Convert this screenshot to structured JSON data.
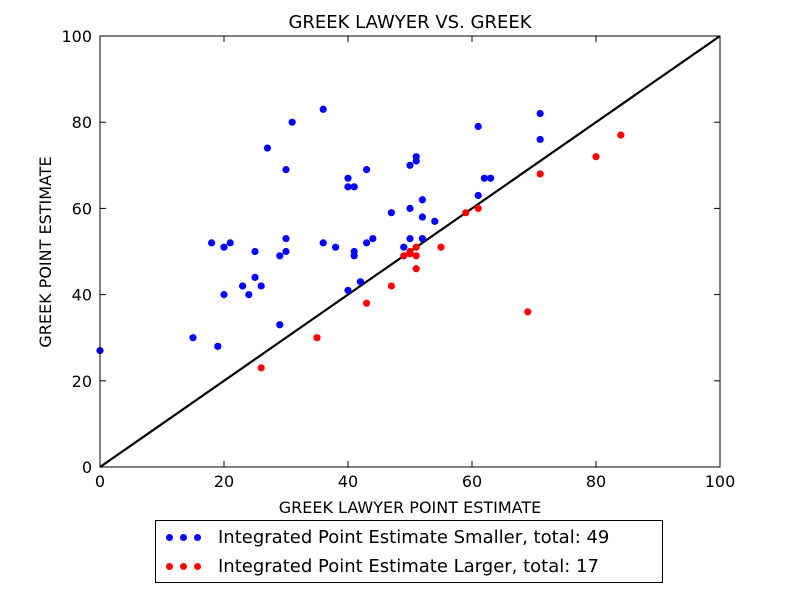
{
  "chart_data": {
    "type": "scatter",
    "title": "GREEK LAWYER VS. GREEK",
    "xlabel": "GREEK LAWYER POINT ESTIMATE",
    "ylabel": "GREEK POINT ESTIMATE",
    "xlim": [
      0,
      100
    ],
    "ylim": [
      0,
      100
    ],
    "xticks": [
      "0",
      "20",
      "40",
      "60",
      "80",
      "100"
    ],
    "yticks": [
      "0",
      "20",
      "40",
      "60",
      "80",
      "100"
    ],
    "grid": false,
    "legend_position": "below",
    "reference_line": {
      "type": "diagonal",
      "x": [
        0,
        100
      ],
      "y": [
        0,
        100
      ],
      "color": "#000000"
    },
    "series": [
      {
        "name": "Integrated Point Estimate Smaller, total: 49",
        "color": "#0000ff",
        "points": [
          [
            0,
            27
          ],
          [
            15,
            30
          ],
          [
            18,
            52
          ],
          [
            19,
            28
          ],
          [
            20,
            51
          ],
          [
            20,
            40
          ],
          [
            21,
            52
          ],
          [
            23,
            42
          ],
          [
            24,
            40
          ],
          [
            25,
            50
          ],
          [
            25,
            44
          ],
          [
            26,
            42
          ],
          [
            27,
            74
          ],
          [
            29,
            49
          ],
          [
            29,
            33
          ],
          [
            30,
            69
          ],
          [
            30,
            53
          ],
          [
            30,
            50
          ],
          [
            31,
            80
          ],
          [
            36,
            83
          ],
          [
            36,
            52
          ],
          [
            38,
            51
          ],
          [
            40,
            67
          ],
          [
            40,
            65
          ],
          [
            40,
            41
          ],
          [
            41,
            65
          ],
          [
            41,
            50
          ],
          [
            41,
            49
          ],
          [
            42,
            43
          ],
          [
            43,
            69
          ],
          [
            43,
            52
          ],
          [
            44,
            53
          ],
          [
            47,
            59
          ],
          [
            49,
            51
          ],
          [
            50,
            70
          ],
          [
            50,
            60
          ],
          [
            50,
            53
          ],
          [
            51,
            72
          ],
          [
            51,
            71
          ],
          [
            52,
            62
          ],
          [
            52,
            58
          ],
          [
            52,
            53
          ],
          [
            54,
            57
          ],
          [
            61,
            79
          ],
          [
            61,
            63
          ],
          [
            62,
            67
          ],
          [
            63,
            67
          ],
          [
            71,
            82
          ],
          [
            71,
            76
          ]
        ]
      },
      {
        "name": "Integrated Point Estimate Larger, total: 17",
        "color": "#ff0000",
        "points": [
          [
            26,
            23
          ],
          [
            35,
            30
          ],
          [
            43,
            38
          ],
          [
            47,
            42
          ],
          [
            49,
            49
          ],
          [
            50,
            50
          ],
          [
            51,
            51
          ],
          [
            51,
            49
          ],
          [
            51,
            46
          ],
          [
            55,
            51
          ],
          [
            59,
            59
          ],
          [
            61,
            60
          ],
          [
            69,
            36
          ],
          [
            71,
            68
          ],
          [
            80,
            72
          ],
          [
            84,
            77
          ],
          [
            50,
            49.5
          ]
        ]
      }
    ]
  }
}
